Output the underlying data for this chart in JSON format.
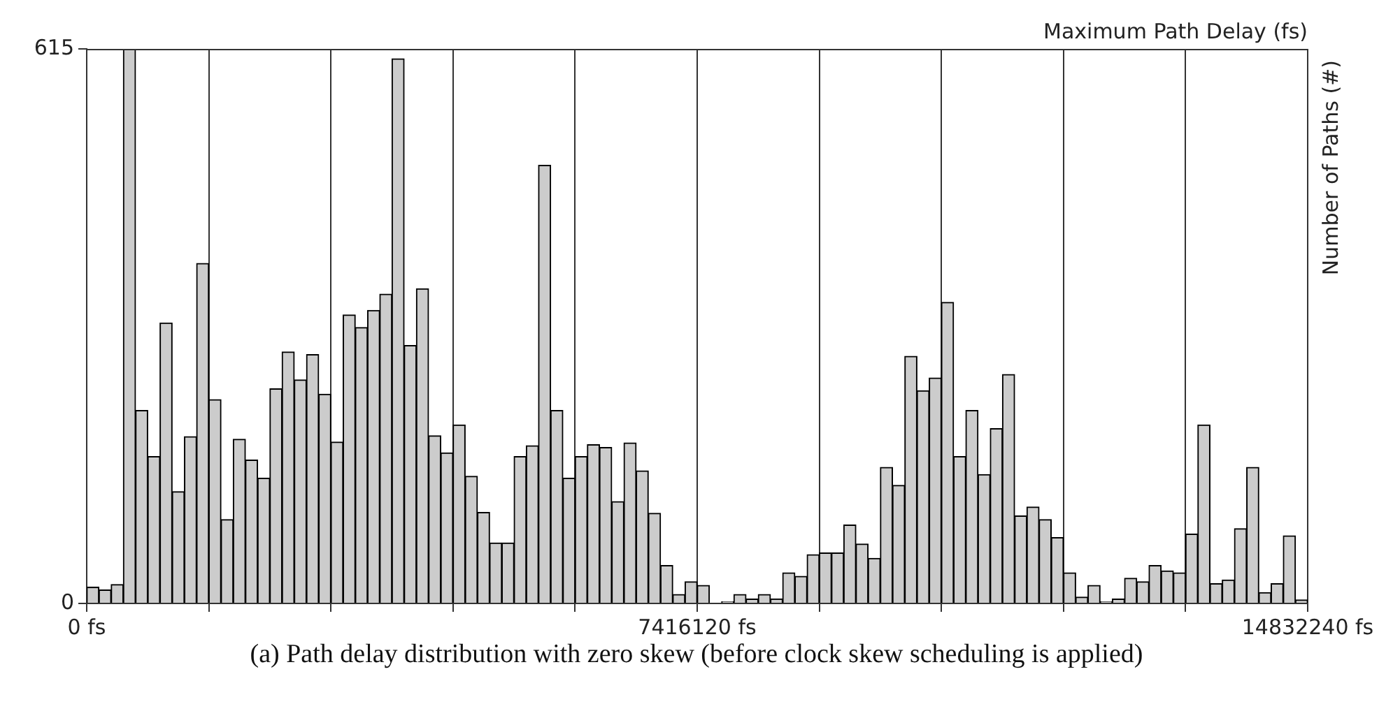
{
  "chart_data": {
    "type": "histogram",
    "xlabel": "Maximum Path Delay (fs)",
    "ylabel": "Number of Paths (#)",
    "annotations": [
      "(a) Path delay distribution with zero skew (before clock skew scheduling is applied)"
    ],
    "bins": [
      0,
      148322.4,
      296644.8,
      444967.2,
      593289.6,
      741612,
      889934.4,
      1038256.8,
      1186579.2,
      1334901.6,
      1483224,
      1631546.4,
      1779868.8,
      1928191.2,
      2076513.6,
      2224836,
      2373158.4,
      2521480.8,
      2669803.2,
      2818125.6,
      2966448,
      3114770.4,
      3263092.8,
      3411415.2,
      3559737.6,
      3708060,
      3856382.4,
      4004704.8,
      4153027.2,
      4301349.6,
      4449672,
      4597994.4,
      4746316.8,
      4894639.2,
      5042961.6,
      5191284,
      5339606.4,
      5487928.8,
      5636251.2,
      5784573.6,
      5932896,
      6081218.4,
      6229540.8,
      6377863.2,
      6526185.6,
      6674508,
      6822830.4,
      6971152.8,
      7119475.2,
      7267797.6,
      7416120,
      7564442.4,
      7712764.8,
      7861087.2,
      8009409.6,
      8157732,
      8306054.4,
      8454376.8,
      8602699.2,
      8751021.6,
      8899344,
      9047666.4,
      9195988.8,
      9344311.2,
      9492633.6,
      9640956,
      9789278.4,
      9937600.8,
      10085923.2,
      10234245.6,
      10382568,
      10530890.4,
      10679212.8,
      10827535.2,
      10975857.6,
      11124180,
      11272502.4,
      11420824.8,
      11569147.2,
      11717469.6,
      11865792,
      12014114.4,
      12162436.8,
      12310759.2,
      12459081.6,
      12607404,
      12755726.4,
      12904048.8,
      13052371.2,
      13200693.6,
      13349016,
      13497338.4,
      13645660.8,
      13793983.2,
      13942305.6,
      14090628,
      14238950.4,
      14387272.8,
      14535595.2,
      14683917.6,
      14832240
    ],
    "values": [
      18,
      15,
      21,
      615,
      214,
      163,
      311,
      124,
      185,
      377,
      226,
      93,
      182,
      159,
      139,
      238,
      279,
      248,
      276,
      232,
      179,
      320,
      306,
      325,
      343,
      604,
      286,
      349,
      186,
      167,
      198,
      141,
      101,
      67,
      67,
      163,
      175,
      486,
      214,
      139,
      163,
      176,
      173,
      113,
      178,
      147,
      100,
      42,
      10,
      24,
      20,
      0,
      2,
      10,
      5,
      10,
      5,
      34,
      30,
      54,
      56,
      56,
      87,
      66,
      50,
      151,
      131,
      274,
      236,
      250,
      334,
      163,
      214,
      143,
      194,
      254,
      97,
      107,
      93,
      73,
      34,
      7,
      20,
      2,
      5,
      28,
      24,
      42,
      36,
      34,
      77,
      198,
      22,
      26,
      83,
      151,
      12,
      22,
      75,
      4
    ],
    "color": "#cccccc",
    "xlim": [
      0,
      14832240
    ],
    "xticks": [
      {
        "value": 0,
        "label": "0 fs"
      },
      {
        "value": 1483224,
        "label": null
      },
      {
        "value": 2966448,
        "label": null
      },
      {
        "value": 4449672,
        "label": null
      },
      {
        "value": 5932896,
        "label": null
      },
      {
        "value": 7416120,
        "label": "7416120 fs"
      },
      {
        "value": 8899344,
        "label": null
      },
      {
        "value": 10382568,
        "label": null
      },
      {
        "value": 11865792,
        "label": null
      },
      {
        "value": 13349016,
        "label": null
      },
      {
        "value": 14832240,
        "label": "14832240 fs"
      }
    ],
    "ylim": [
      0,
      615
    ],
    "yticks": [
      0,
      615
    ],
    "grid": "x"
  }
}
